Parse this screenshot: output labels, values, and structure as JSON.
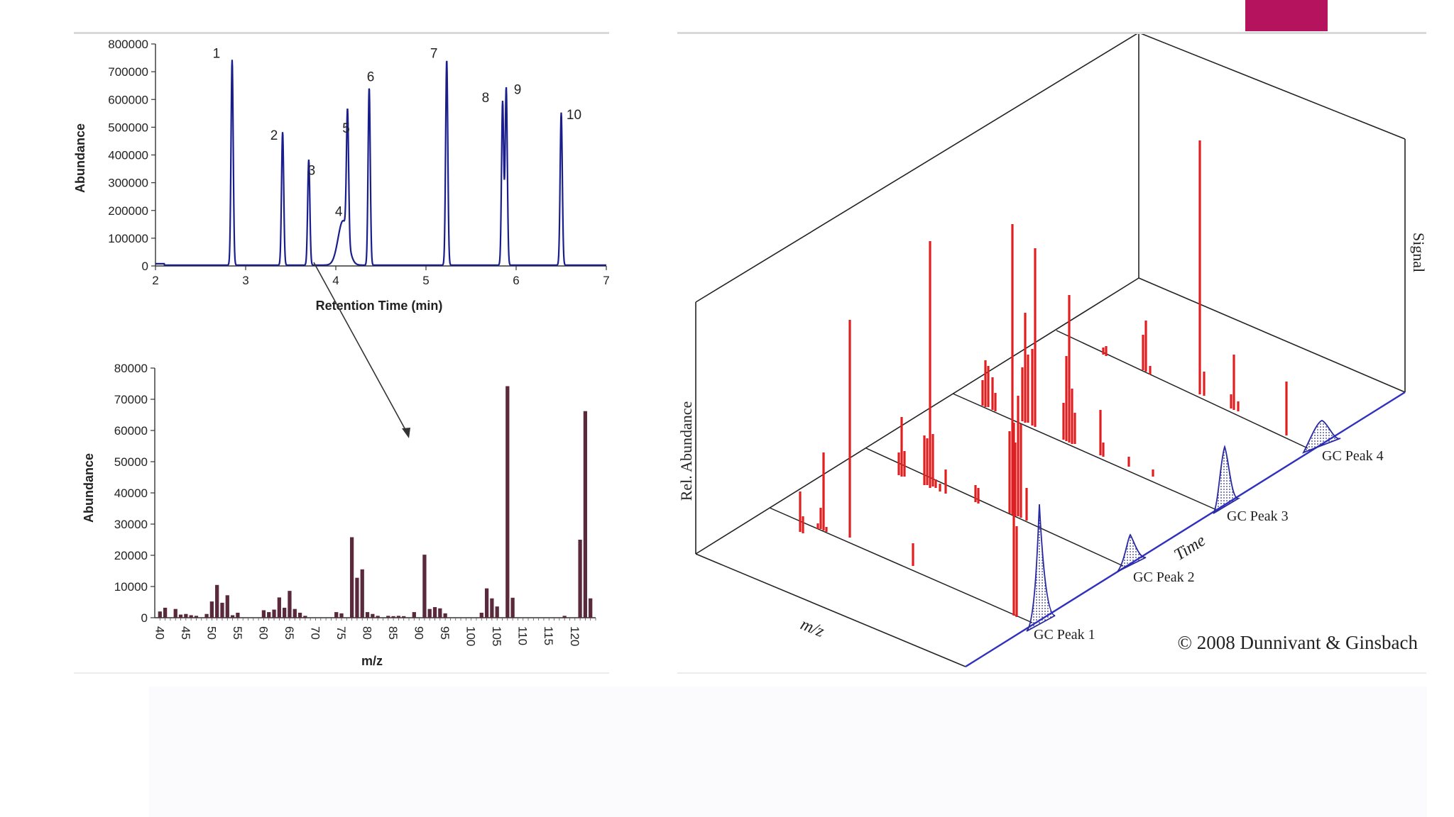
{
  "colors": {
    "accent": "#b5135e",
    "chromatogram": "#1a1e8c",
    "mass_spectrum": "#5a2a3c",
    "red_peaks": "#e02020",
    "blue_peaks": "#2a2aa0"
  },
  "chart_data": [
    {
      "type": "line",
      "xlabel": "Retention Time (min)",
      "ylabel": "Abundance",
      "xlim": [
        2,
        7
      ],
      "ylim": [
        0,
        800000
      ],
      "x_ticks": [
        "2",
        "3",
        "4",
        "5",
        "6",
        "7"
      ],
      "y_ticks": [
        "0",
        "100000",
        "200000",
        "300000",
        "400000",
        "500000",
        "600000",
        "700000",
        "800000"
      ],
      "peaks": [
        {
          "label": "1",
          "x": 2.85,
          "y": 740000
        },
        {
          "label": "2",
          "x": 3.41,
          "y": 480000
        },
        {
          "label": "3",
          "x": 3.7,
          "y": 380000
        },
        {
          "label": "4",
          "x": 4.08,
          "y": 160000
        },
        {
          "label": "5",
          "x": 4.13,
          "y": 460000
        },
        {
          "label": "6",
          "x": 4.37,
          "y": 640000
        },
        {
          "label": "7",
          "x": 5.23,
          "y": 740000
        },
        {
          "label": "8",
          "x": 5.85,
          "y": 590000
        },
        {
          "label": "9",
          "x": 5.89,
          "y": 640000
        },
        {
          "label": "10",
          "x": 6.5,
          "y": 550000
        }
      ]
    },
    {
      "type": "bar",
      "xlabel": "m/z",
      "ylabel": "Abundance",
      "xlim": [
        39,
        124
      ],
      "ylim": [
        0,
        80000
      ],
      "x_ticks": [
        "40",
        "45",
        "50",
        "55",
        "60",
        "65",
        "70",
        "75",
        "80",
        "85",
        "90",
        "95",
        "100",
        "105",
        "110",
        "115",
        "120"
      ],
      "y_ticks": [
        "0",
        "10000",
        "20000",
        "30000",
        "40000",
        "50000",
        "60000",
        "70000",
        "80000"
      ],
      "points": [
        [
          40,
          2000
        ],
        [
          41,
          3200
        ],
        [
          43,
          2800
        ],
        [
          44,
          1000
        ],
        [
          45,
          1200
        ],
        [
          46,
          800
        ],
        [
          47,
          600
        ],
        [
          49,
          1200
        ],
        [
          50,
          5200
        ],
        [
          51,
          10500
        ],
        [
          52,
          4800
        ],
        [
          53,
          7200
        ],
        [
          54,
          800
        ],
        [
          55,
          1600
        ],
        [
          60,
          2400
        ],
        [
          61,
          1800
        ],
        [
          62,
          2600
        ],
        [
          63,
          6500
        ],
        [
          64,
          3200
        ],
        [
          65,
          8600
        ],
        [
          66,
          2800
        ],
        [
          67,
          1600
        ],
        [
          68,
          600
        ],
        [
          74,
          1800
        ],
        [
          75,
          1400
        ],
        [
          77,
          25800
        ],
        [
          78,
          12800
        ],
        [
          79,
          15500
        ],
        [
          80,
          1800
        ],
        [
          81,
          1200
        ],
        [
          82,
          600
        ],
        [
          84,
          600
        ],
        [
          85,
          500
        ],
        [
          86,
          600
        ],
        [
          87,
          500
        ],
        [
          89,
          1800
        ],
        [
          91,
          20200
        ],
        [
          92,
          2800
        ],
        [
          93,
          3400
        ],
        [
          94,
          3000
        ],
        [
          95,
          1400
        ],
        [
          102,
          1600
        ],
        [
          103,
          9400
        ],
        [
          104,
          6200
        ],
        [
          105,
          3600
        ],
        [
          107,
          74200
        ],
        [
          108,
          6400
        ],
        [
          118,
          600
        ],
        [
          121,
          25000
        ],
        [
          122,
          66200
        ],
        [
          123,
          6200
        ]
      ]
    },
    {
      "type": "other",
      "description_labels": {
        "ylabel": "Rel. Abundance",
        "xlabel": "m/z",
        "time_axis": "Time",
        "signal_axis": "Signal",
        "gc_peaks": [
          "GC Peak 1",
          "GC Peak 2",
          "GC Peak 3",
          "GC Peak 4"
        ],
        "copyright": "© 2008 Dunnivant & Ginsbach"
      }
    }
  ]
}
